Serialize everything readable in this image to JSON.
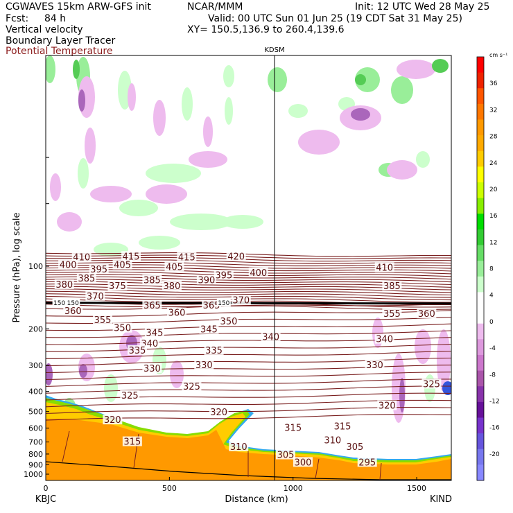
{
  "header": {
    "model": "CGWAVES 15km ARW-GFS init",
    "fcst_label": "Fcst:",
    "fcst_value": "84 h",
    "org": "NCAR/MMM",
    "init": "Init: 12 UTC Wed 28 May 25",
    "valid": "Valid: 00 UTC Sun 01 Jun 25 (19 CDT Sat 31 May 25)",
    "xy": "XY= 150.5,136.9 to 260.4,139.6",
    "field1": "Vertical velocity",
    "field2": "Boundary Layer Tracer",
    "field3": "Potential Temperature"
  },
  "chart_data": {
    "type": "cross-section",
    "xlabel": "Distance (km)",
    "ylabel": "Pressure (hPa), log scale",
    "xlim": [
      0,
      1640
    ],
    "x_ticks": [
      0,
      500,
      1000,
      1500
    ],
    "y_ticks": [
      100,
      200,
      300,
      400,
      500,
      600,
      700,
      800,
      900,
      1000
    ],
    "y_scale": "log",
    "left_station": "KBJC",
    "right_station": "KIND",
    "mid_station": "KDSM",
    "mid_station_km": 930,
    "colorbar_unit": "cm s⁻¹",
    "colorbar_ticks": [
      36,
      32,
      28,
      24,
      20,
      16,
      12,
      8,
      4,
      0,
      -4,
      -8,
      -12,
      -16,
      -20
    ],
    "colorbar_colors": [
      "#ff0000",
      "#ee2200",
      "#ff5500",
      "#ff7700",
      "#ff9900",
      "#ffaa00",
      "#ffcc00",
      "#ffff00",
      "#ccff00",
      "#88ee00",
      "#00dd00",
      "#33cc33",
      "#66dd66",
      "#99ee99",
      "#ccffcc",
      "#ffffff",
      "#ffffff",
      "#eebbee",
      "#dd99dd",
      "#cc77cc",
      "#aa55aa",
      "#8833aa",
      "#661199",
      "#7733cc",
      "#6655dd",
      "#7777ee",
      "#8888ff"
    ],
    "theta_labels": [
      {
        "v": "410",
        "x": 145,
        "p": 91
      },
      {
        "v": "415",
        "x": 345,
        "p": 90
      },
      {
        "v": "415",
        "x": 570,
        "p": 91
      },
      {
        "v": "420",
        "x": 770,
        "p": 90
      },
      {
        "v": "400",
        "x": 90,
        "p": 99
      },
      {
        "v": "405",
        "x": 310,
        "p": 99
      },
      {
        "v": "405",
        "x": 520,
        "p": 101
      },
      {
        "v": "410",
        "x": 1370,
        "p": 102
      },
      {
        "v": "395",
        "x": 215,
        "p": 104
      },
      {
        "v": "395",
        "x": 720,
        "p": 111
      },
      {
        "v": "400",
        "x": 860,
        "p": 108
      },
      {
        "v": "385",
        "x": 165,
        "p": 115
      },
      {
        "v": "385",
        "x": 430,
        "p": 117
      },
      {
        "v": "390",
        "x": 650,
        "p": 117
      },
      {
        "v": "380",
        "x": 75,
        "p": 123
      },
      {
        "v": "380",
        "x": 510,
        "p": 125
      },
      {
        "v": "375",
        "x": 290,
        "p": 125
      },
      {
        "v": "385",
        "x": 1400,
        "p": 125
      },
      {
        "v": "370",
        "x": 200,
        "p": 140
      },
      {
        "v": "370",
        "x": 790,
        "p": 146
      },
      {
        "v": "365",
        "x": 430,
        "p": 155
      },
      {
        "v": "365",
        "x": 670,
        "p": 155
      },
      {
        "v": "360",
        "x": 110,
        "p": 165
      },
      {
        "v": "360",
        "x": 530,
        "p": 168
      },
      {
        "v": "355",
        "x": 1400,
        "p": 170
      },
      {
        "v": "360",
        "x": 1540,
        "p": 170
      },
      {
        "v": "355",
        "x": 230,
        "p": 182
      },
      {
        "v": "350",
        "x": 310,
        "p": 199
      },
      {
        "v": "350",
        "x": 740,
        "p": 185
      },
      {
        "v": "345",
        "x": 440,
        "p": 210
      },
      {
        "v": "345",
        "x": 660,
        "p": 202
      },
      {
        "v": "340",
        "x": 420,
        "p": 236
      },
      {
        "v": "340",
        "x": 910,
        "p": 220
      },
      {
        "v": "340",
        "x": 1370,
        "p": 225
      },
      {
        "v": "335",
        "x": 370,
        "p": 255
      },
      {
        "v": "335",
        "x": 680,
        "p": 255
      },
      {
        "v": "330",
        "x": 430,
        "p": 311
      },
      {
        "v": "330",
        "x": 640,
        "p": 300
      },
      {
        "v": "330",
        "x": 1330,
        "p": 300
      },
      {
        "v": "325",
        "x": 590,
        "p": 380
      },
      {
        "v": "325",
        "x": 340,
        "p": 420
      },
      {
        "v": "325",
        "x": 1560,
        "p": 370
      },
      {
        "v": "320",
        "x": 700,
        "p": 505
      },
      {
        "v": "320",
        "x": 270,
        "p": 550
      },
      {
        "v": "320",
        "x": 1380,
        "p": 470
      },
      {
        "v": "315",
        "x": 1000,
        "p": 600
      },
      {
        "v": "315",
        "x": 350,
        "p": 700
      },
      {
        "v": "315",
        "x": 1200,
        "p": 590
      },
      {
        "v": "310",
        "x": 1160,
        "p": 690
      },
      {
        "v": "310",
        "x": 780,
        "p": 740
      },
      {
        "v": "305",
        "x": 970,
        "p": 810
      },
      {
        "v": "305",
        "x": 1250,
        "p": 740
      },
      {
        "v": "300",
        "x": 1040,
        "p": 880
      },
      {
        "v": "295",
        "x": 1300,
        "p": 880
      }
    ],
    "tracer_labels": [
      {
        "v": "150",
        "x": 55,
        "p": 150
      },
      {
        "v": "150",
        "x": 110,
        "p": 150
      },
      {
        "v": "150",
        "x": 720,
        "p": 150
      }
    ]
  }
}
